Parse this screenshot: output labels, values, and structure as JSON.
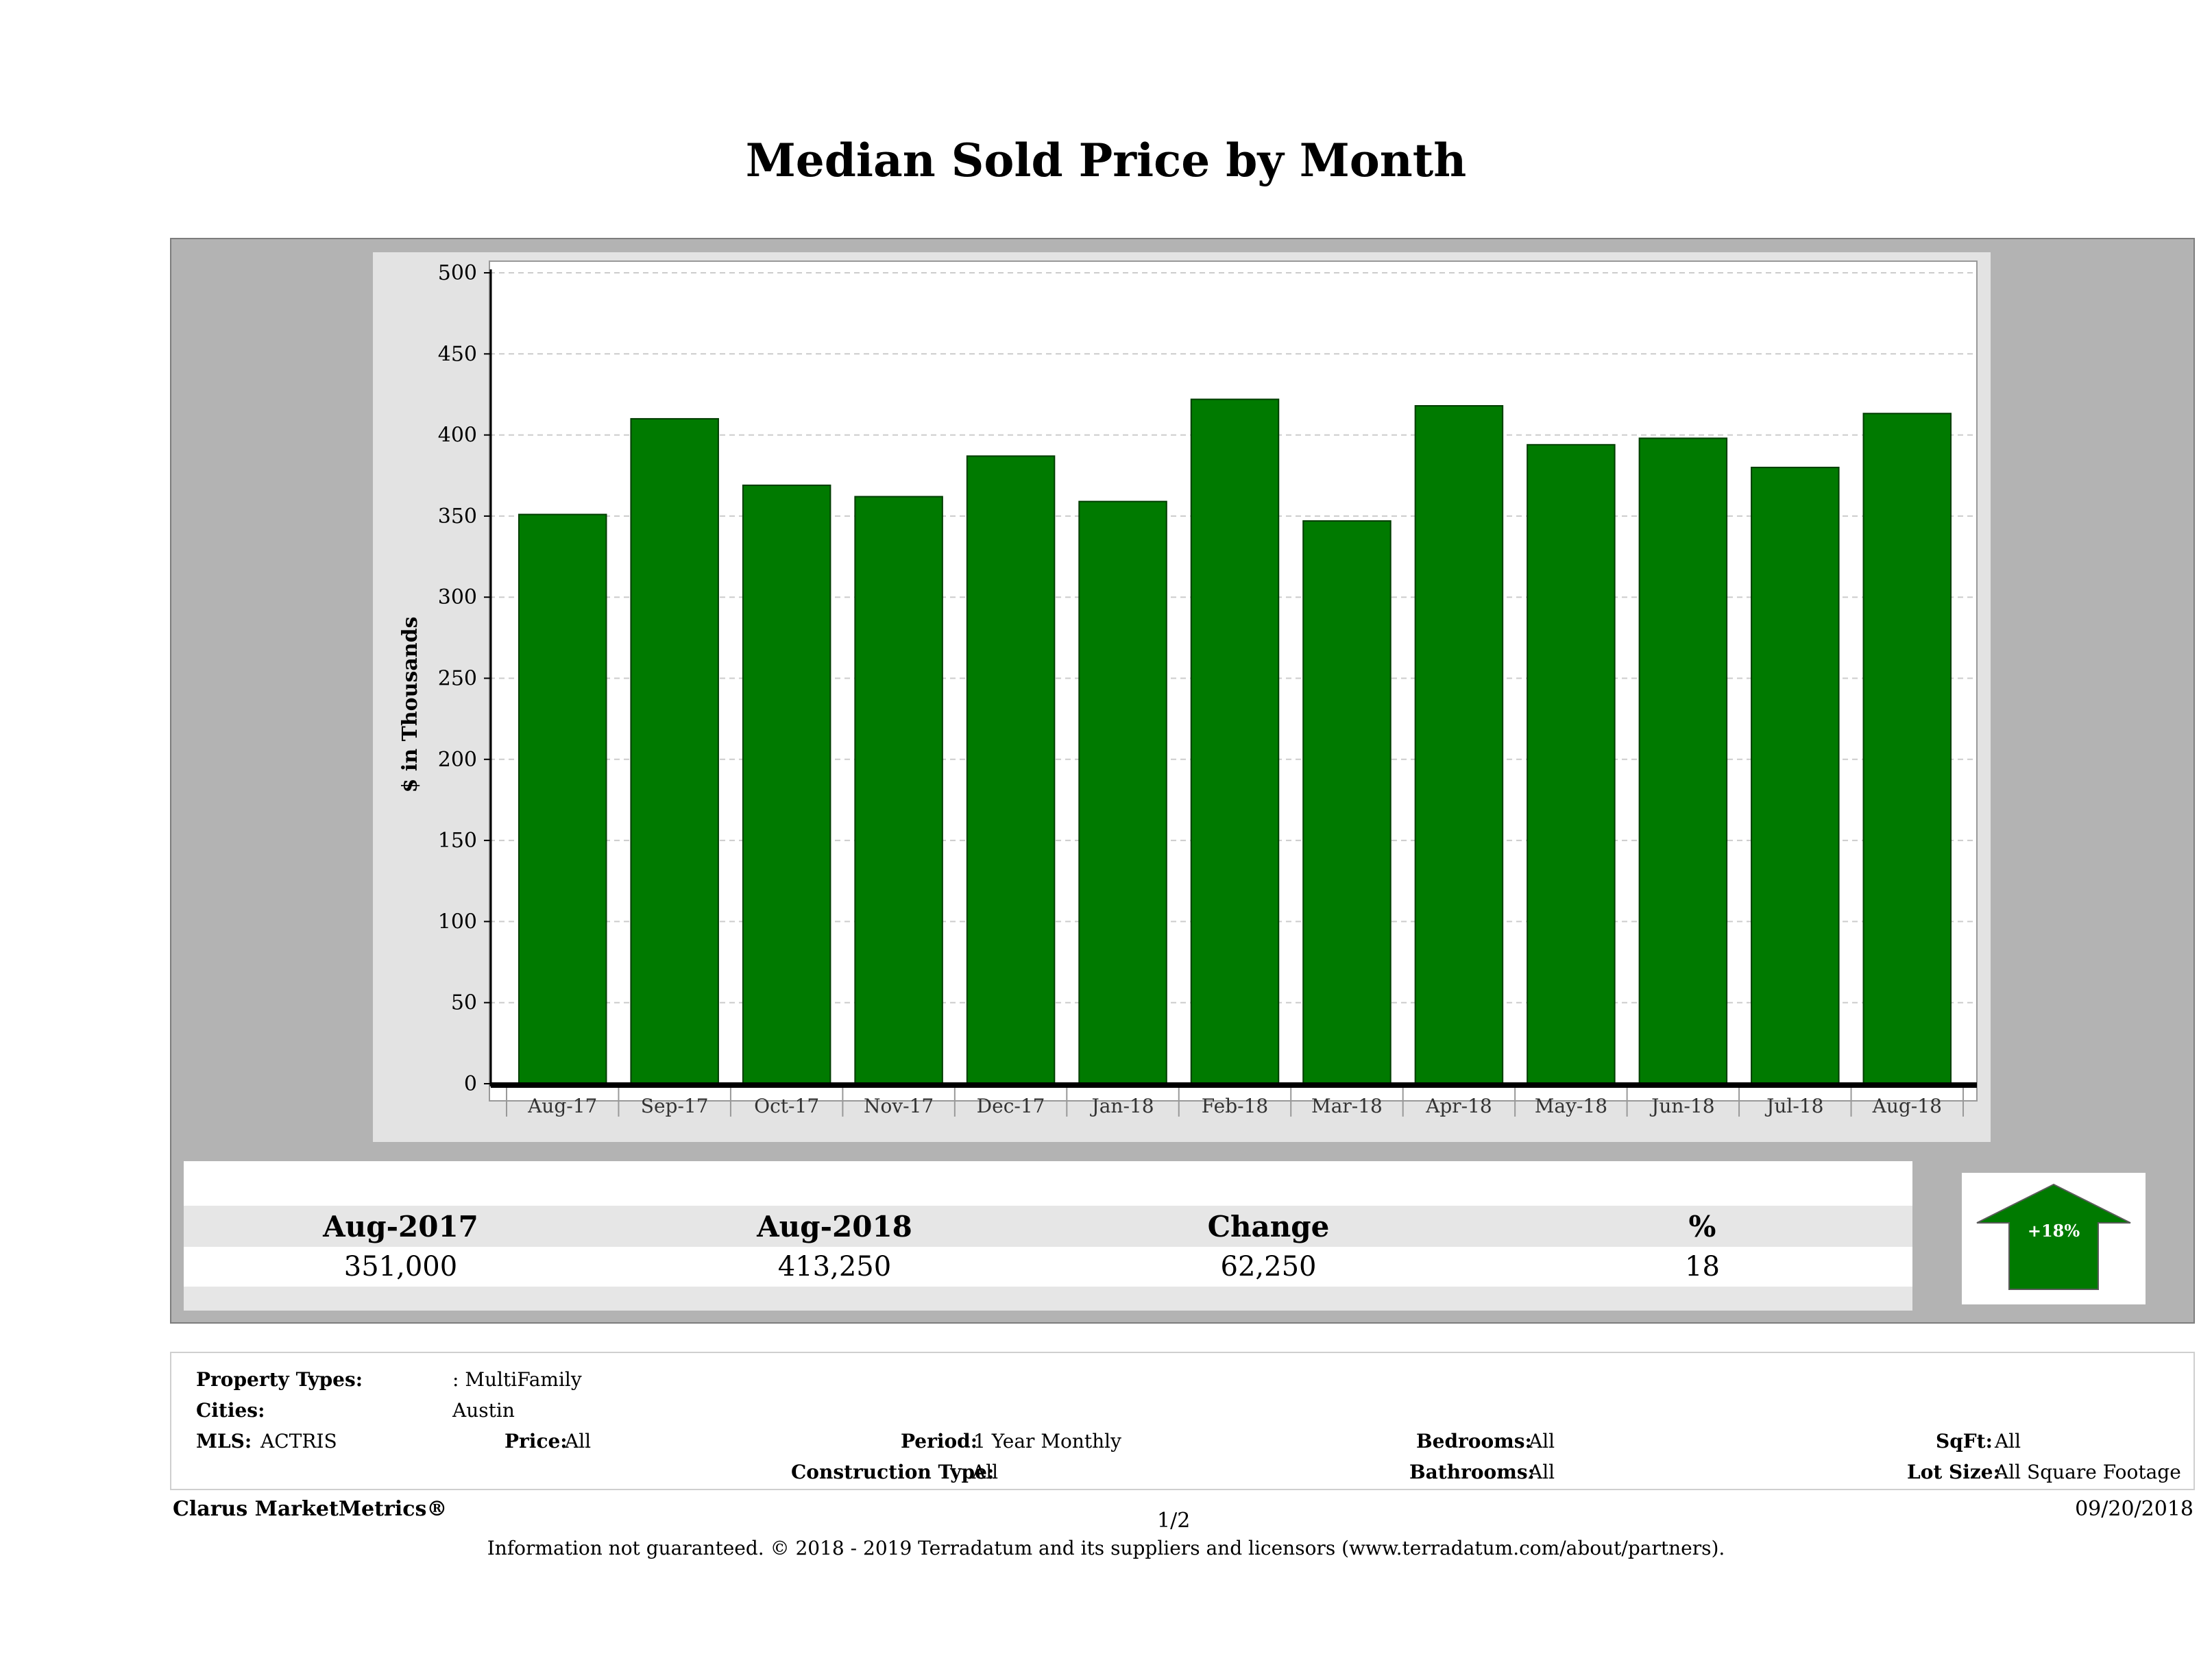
{
  "title": "Median Sold Price by Month",
  "colors": {
    "bar": "#007a00",
    "frame": "#b3b3b3",
    "panel": "#e3e3e3",
    "arrow": "#007a00"
  },
  "chart_data": {
    "type": "bar",
    "title": "Median Sold Price by Month",
    "xlabel": "",
    "ylabel": "$ in Thousands",
    "ylim": [
      0,
      500
    ],
    "yticks": [
      0,
      50,
      100,
      150,
      200,
      250,
      300,
      350,
      400,
      450,
      500
    ],
    "grid": true,
    "categories": [
      "Aug-17",
      "Sep-17",
      "Oct-17",
      "Nov-17",
      "Dec-17",
      "Jan-18",
      "Feb-18",
      "Mar-18",
      "Apr-18",
      "May-18",
      "Jun-18",
      "Jul-18",
      "Aug-18"
    ],
    "values": [
      351,
      410,
      369,
      362,
      387,
      359,
      422,
      347,
      418,
      394,
      398,
      380,
      413.25
    ]
  },
  "summary": {
    "headers": [
      "Aug-2017",
      "Aug-2018",
      "Change",
      "%"
    ],
    "values": [
      "351,000",
      "413,250",
      "62,250",
      "18"
    ],
    "badge": "+18%",
    "badge_icon": "up-arrow-icon"
  },
  "criteria": {
    "property_types_label": "Property Types:",
    "property_types_value": ": MultiFamily",
    "cities_label": "Cities:",
    "cities_value": "Austin",
    "mls_label": "MLS:",
    "mls_value": "ACTRIS",
    "price_label": "Price:",
    "price_value": "All",
    "period_label": "Period:",
    "period_value": "1 Year Monthly",
    "construction_label": "Construction Type:",
    "construction_value": "All",
    "bedrooms_label": "Bedrooms:",
    "bedrooms_value": "All",
    "bathrooms_label": "Bathrooms:",
    "bathrooms_value": "All",
    "sqft_label": "SqFt:",
    "sqft_value": "All",
    "lotsize_label": "Lot Size:",
    "lotsize_value": "All Square Footage"
  },
  "footer": {
    "brand": "Clarus MarketMetrics®",
    "page": "1/2",
    "date": "09/20/2018",
    "disclaimer": "Information not guaranteed. © 2018 - 2019 Terradatum and its suppliers and licensors (www.terradatum.com/about/partners)."
  }
}
